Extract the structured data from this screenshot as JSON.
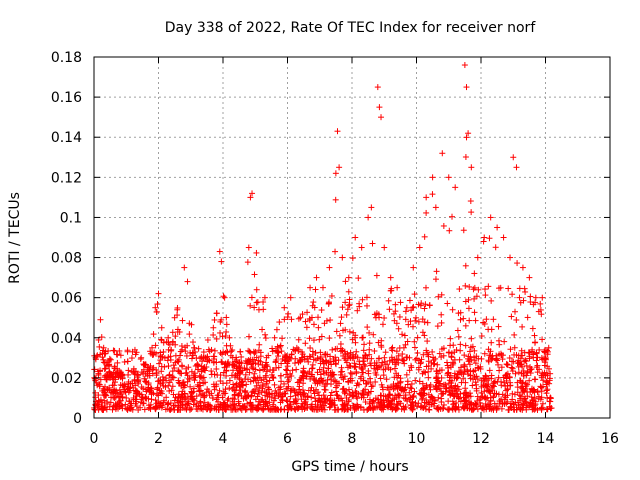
{
  "chart_data": {
    "type": "scatter",
    "title": "Day 338 of 2022, Rate Of TEC Index for receiver norf",
    "xlabel": "GPS time / hours",
    "ylabel": "ROTI / TECUs",
    "xlim": [
      0,
      16
    ],
    "ylim": [
      0,
      0.18
    ],
    "x_ticks": [
      0,
      2,
      4,
      6,
      8,
      10,
      12,
      14,
      16
    ],
    "x_tick_labels": [
      "0",
      "2",
      "4",
      "6",
      "8",
      "10",
      "12",
      "14",
      "16"
    ],
    "y_ticks": [
      0,
      0.02,
      0.04,
      0.06,
      0.08,
      0.1,
      0.12,
      0.14,
      0.16,
      0.18
    ],
    "y_tick_labels": [
      "0",
      "0.02",
      "0.04",
      "0.06",
      "0.08",
      "0.1",
      "0.12",
      "0.14",
      "0.16",
      "0.18"
    ],
    "grid": true,
    "marker": "+",
    "series_color": "#ff0000",
    "x_data_range": [
      0,
      14.2
    ],
    "series": [
      {
        "name": "ROTI",
        "x": [
          0.05,
          0.2,
          0.3,
          0.5,
          0.8,
          1.0,
          1.3,
          1.6,
          1.8,
          1.9,
          2.0,
          2.1,
          2.3,
          2.5,
          2.8,
          2.9,
          3.1,
          3.4,
          3.7,
          3.9,
          3.95,
          4.05,
          4.2,
          4.5,
          4.8,
          4.85,
          4.9,
          5.3,
          5.6,
          5.9,
          6.1,
          6.4,
          6.7,
          6.9,
          7.1,
          7.3,
          7.5,
          7.55,
          7.6,
          7.7,
          7.9,
          8.1,
          8.3,
          8.5,
          8.6,
          8.8,
          8.85,
          8.9,
          9.0,
          9.2,
          9.4,
          9.7,
          9.9,
          10.1,
          10.3,
          10.5,
          10.6,
          10.8,
          11.0,
          11.2,
          11.5,
          11.55,
          11.6,
          11.7,
          11.9,
          12.1,
          12.3,
          12.5,
          12.7,
          12.9,
          13.0,
          13.1,
          13.3,
          13.5,
          13.7,
          13.9,
          14.1
        ],
        "y": [
          0.03,
          0.049,
          0.035,
          0.02,
          0.014,
          0.01,
          0.012,
          0.022,
          0.035,
          0.055,
          0.062,
          0.045,
          0.04,
          0.05,
          0.075,
          0.068,
          0.035,
          0.03,
          0.045,
          0.083,
          0.078,
          0.06,
          0.04,
          0.02,
          0.085,
          0.11,
          0.112,
          0.06,
          0.04,
          0.055,
          0.06,
          0.05,
          0.065,
          0.07,
          0.065,
          0.075,
          0.122,
          0.143,
          0.125,
          0.08,
          0.07,
          0.09,
          0.085,
          0.1,
          0.105,
          0.165,
          0.155,
          0.15,
          0.085,
          0.07,
          0.065,
          0.055,
          0.075,
          0.085,
          0.11,
          0.12,
          0.105,
          0.132,
          0.12,
          0.115,
          0.176,
          0.165,
          0.142,
          0.125,
          0.08,
          0.09,
          0.1,
          0.095,
          0.09,
          0.08,
          0.13,
          0.125,
          0.075,
          0.07,
          0.06,
          0.06,
          0.035
        ]
      }
    ]
  }
}
